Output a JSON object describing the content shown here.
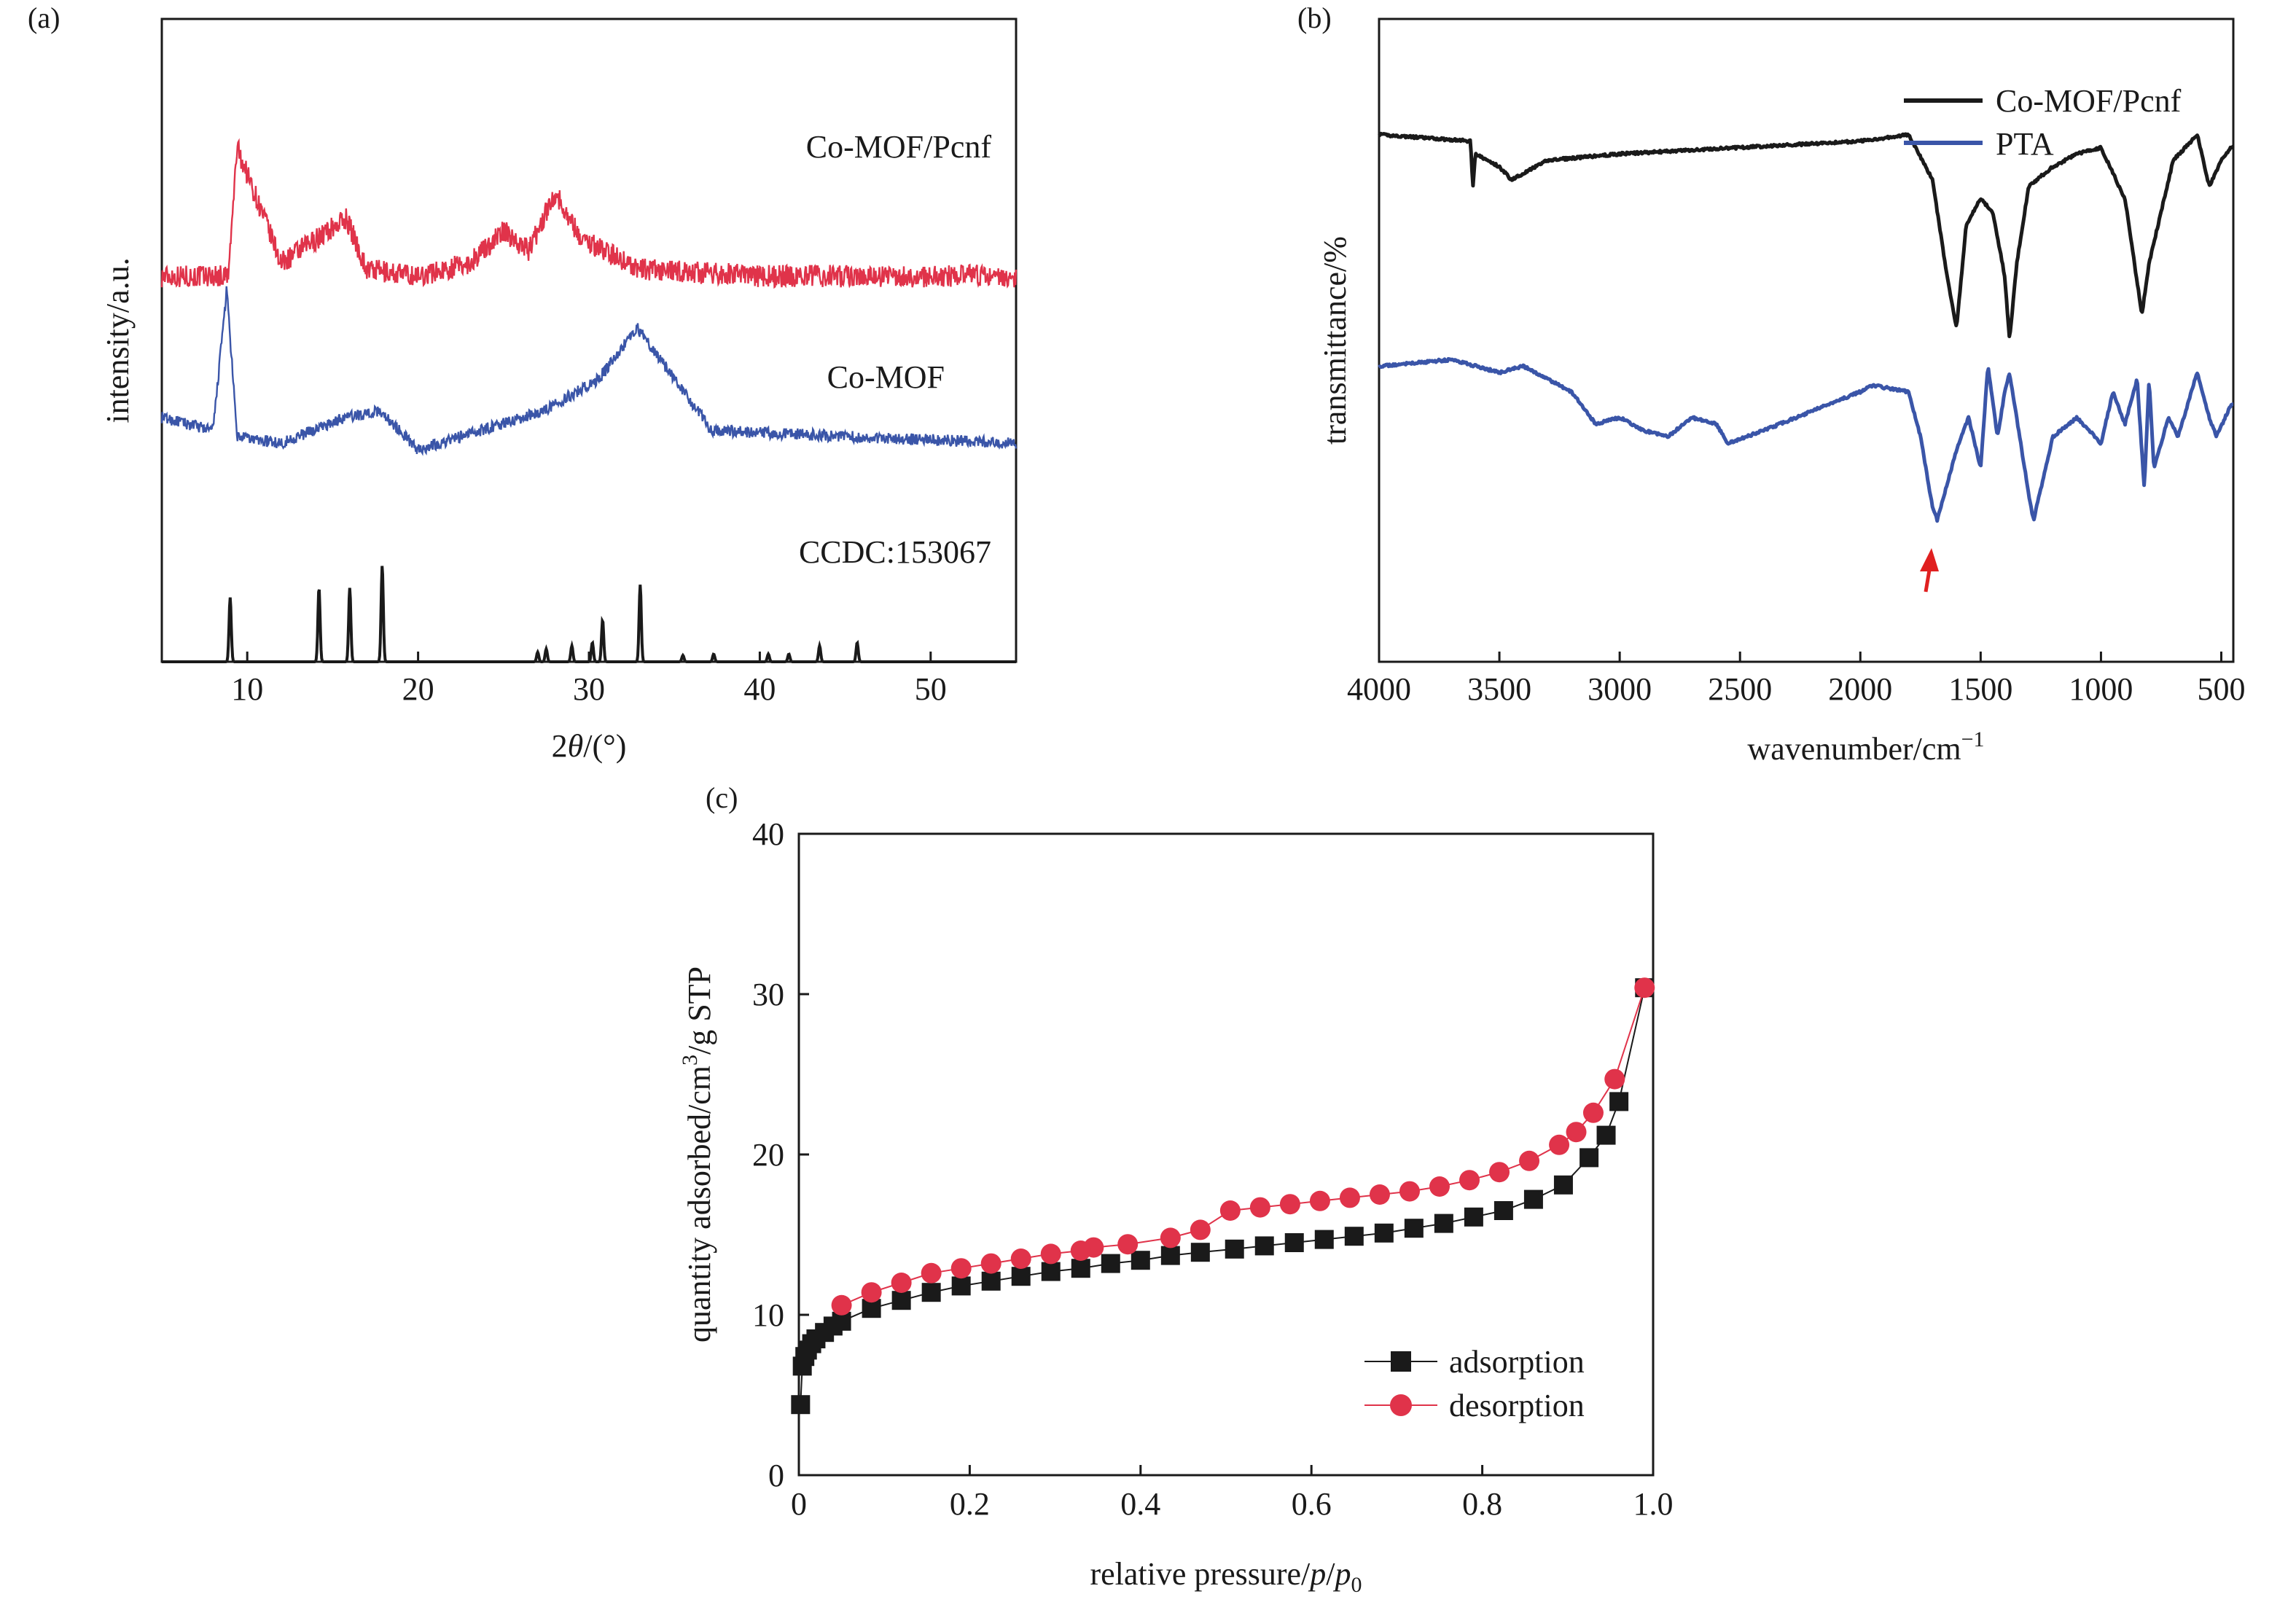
{
  "chart_data": [
    {
      "panel": "(a)",
      "type": "line",
      "xlabel_prefix": "2",
      "xlabel_symbol": "θ",
      "xlabel_suffix": "/(°)",
      "ylabel": "intensity/a.u.",
      "xlim": [
        5,
        55
      ],
      "xticks": [
        10,
        20,
        30,
        40,
        50
      ],
      "series": [
        {
          "name": "Co-MOF/Pcnf",
          "color": "#e0334a",
          "baseline": 0.6,
          "noise": 0.035,
          "x": [
            5,
            8.9,
            9.4,
            12,
            15.8,
            17,
            20,
            23,
            25,
            26.5,
            28,
            29.5,
            33,
            40,
            45,
            55
          ],
          "y": [
            0.6,
            0.6,
            0.8,
            0.62,
            0.69,
            0.61,
            0.6,
            0.62,
            0.67,
            0.64,
            0.73,
            0.66,
            0.61,
            0.6,
            0.6,
            0.6
          ]
        },
        {
          "name": "Co-MOF",
          "color": "#3a55a8",
          "baseline": 0.34,
          "noise": 0.018,
          "x": [
            5,
            8,
            8.8,
            9.4,
            12,
            15.7,
            17.8,
            20,
            27.3,
            30.6,
            32.8,
            37.2,
            45.5,
            55
          ],
          "y": [
            0.38,
            0.36,
            0.58,
            0.35,
            0.34,
            0.38,
            0.39,
            0.33,
            0.39,
            0.44,
            0.52,
            0.36,
            0.35,
            0.34
          ]
        },
        {
          "name": "CCDC:153067",
          "color": "#1a1a1a",
          "type": "peaks",
          "baseline": 0.0,
          "peaks": [
            [
              9.0,
              0.1
            ],
            [
              14.2,
              0.115
            ],
            [
              16.0,
              0.115
            ],
            [
              17.9,
              0.15
            ],
            [
              27.0,
              0.015
            ],
            [
              27.5,
              0.02
            ],
            [
              29.0,
              0.025
            ],
            [
              30.2,
              0.03
            ],
            [
              30.8,
              0.065
            ],
            [
              33.0,
              0.12
            ],
            [
              35.5,
              0.01
            ],
            [
              37.3,
              0.012
            ],
            [
              40.5,
              0.012
            ],
            [
              41.7,
              0.012
            ],
            [
              43.5,
              0.025
            ],
            [
              45.7,
              0.03
            ]
          ]
        }
      ]
    },
    {
      "panel": "(b)",
      "type": "line",
      "xlabel_prefix": "wavenumber/cm",
      "xlabel_sup": "−1",
      "ylabel": "transmittance/%",
      "xlim": [
        4000,
        450
      ],
      "xticks": [
        4000,
        3500,
        3000,
        2500,
        2000,
        1500,
        1000,
        500
      ],
      "legend": "top-right",
      "annotation": "red arrow at ~1690 cm−1 on PTA",
      "series": [
        {
          "name": "Co-MOF/Pcnf",
          "color": "#1a1a1a",
          "x": [
            4000,
            3620,
            3610,
            3600,
            3500,
            3450,
            3300,
            3000,
            2500,
            2000,
            1800,
            1700,
            1640,
            1600,
            1560,
            1500,
            1450,
            1400,
            1380,
            1350,
            1300,
            1200,
            1100,
            1000,
            900,
            830,
            800,
            750,
            700,
            600,
            550,
            500,
            460
          ],
          "y": [
            0.82,
            0.81,
            0.74,
            0.79,
            0.77,
            0.75,
            0.78,
            0.79,
            0.8,
            0.81,
            0.82,
            0.75,
            0.6,
            0.52,
            0.68,
            0.72,
            0.7,
            0.6,
            0.5,
            0.62,
            0.74,
            0.77,
            0.79,
            0.8,
            0.72,
            0.54,
            0.62,
            0.7,
            0.78,
            0.82,
            0.74,
            0.78,
            0.8
          ]
        },
        {
          "name": "PTA",
          "color": "#3a55a8",
          "x": [
            4000,
            3700,
            3600,
            3500,
            3400,
            3200,
            3100,
            3000,
            2900,
            2800,
            2700,
            2600,
            2550,
            2400,
            2200,
            2000,
            1950,
            1800,
            1750,
            1700,
            1680,
            1600,
            1550,
            1500,
            1470,
            1430,
            1400,
            1380,
            1300,
            1280,
            1200,
            1100,
            1000,
            950,
            900,
            850,
            820,
            800,
            780,
            720,
            680,
            600,
            550,
            520,
            460
          ],
          "y": [
            0.46,
            0.47,
            0.46,
            0.45,
            0.46,
            0.42,
            0.37,
            0.38,
            0.36,
            0.35,
            0.38,
            0.37,
            0.34,
            0.36,
            0.39,
            0.42,
            0.43,
            0.42,
            0.35,
            0.24,
            0.22,
            0.33,
            0.38,
            0.3,
            0.46,
            0.35,
            0.42,
            0.45,
            0.26,
            0.22,
            0.35,
            0.38,
            0.34,
            0.42,
            0.37,
            0.44,
            0.27,
            0.44,
            0.3,
            0.38,
            0.35,
            0.45,
            0.38,
            0.35,
            0.4
          ]
        }
      ]
    },
    {
      "panel": "(c)",
      "type": "scatter",
      "xlabel_prefix": "relative pressure/",
      "xlabel_symbol": "p",
      "xlabel_mid": "/",
      "xlabel_symbol2": "p",
      "xlabel_sub": "0",
      "ylabel_prefix": "quantity adsorbed/cm",
      "ylabel_sup": "3",
      "ylabel_suffix": "/g STP",
      "xlim": [
        0,
        1.0
      ],
      "ylim": [
        0,
        40
      ],
      "xticks": [
        0,
        0.2,
        0.4,
        0.6,
        0.8,
        1.0
      ],
      "xtick_labels": [
        "0",
        "0.2",
        "0.4",
        "0.6",
        "0.8",
        "1.0"
      ],
      "yticks": [
        0,
        10,
        20,
        30,
        40
      ],
      "legend": "bottom-right",
      "series": [
        {
          "name": "adsorption",
          "color": "#1a1a1a",
          "marker": "square",
          "x": [
            0.002,
            0.004,
            0.007,
            0.01,
            0.015,
            0.02,
            0.03,
            0.04,
            0.05,
            0.085,
            0.12,
            0.155,
            0.19,
            0.225,
            0.26,
            0.295,
            0.33,
            0.365,
            0.4,
            0.435,
            0.47,
            0.51,
            0.545,
            0.58,
            0.615,
            0.65,
            0.685,
            0.72,
            0.755,
            0.79,
            0.825,
            0.86,
            0.895,
            0.925,
            0.945,
            0.96,
            0.99
          ],
          "y": [
            4.4,
            6.8,
            7.4,
            7.8,
            8.2,
            8.5,
            8.9,
            9.3,
            9.6,
            10.4,
            10.9,
            11.4,
            11.8,
            12.1,
            12.4,
            12.7,
            12.9,
            13.2,
            13.4,
            13.7,
            13.9,
            14.1,
            14.3,
            14.5,
            14.7,
            14.9,
            15.1,
            15.4,
            15.7,
            16.1,
            16.5,
            17.2,
            18.1,
            19.8,
            21.2,
            23.3,
            30.4
          ]
        },
        {
          "name": "desorption",
          "color": "#e0334a",
          "marker": "circle",
          "x": [
            0.99,
            0.955,
            0.93,
            0.91,
            0.89,
            0.855,
            0.82,
            0.785,
            0.75,
            0.715,
            0.68,
            0.645,
            0.61,
            0.575,
            0.54,
            0.505,
            0.47,
            0.435,
            0.385,
            0.345,
            0.33,
            0.295,
            0.26,
            0.225,
            0.19,
            0.155,
            0.12,
            0.085,
            0.05
          ],
          "y": [
            30.4,
            24.7,
            22.6,
            21.4,
            20.6,
            19.6,
            18.9,
            18.4,
            18.0,
            17.7,
            17.5,
            17.3,
            17.1,
            16.9,
            16.7,
            16.5,
            15.3,
            14.8,
            14.4,
            14.2,
            14.0,
            13.8,
            13.5,
            13.2,
            12.9,
            12.6,
            12.0,
            11.4,
            10.6
          ]
        }
      ]
    }
  ]
}
